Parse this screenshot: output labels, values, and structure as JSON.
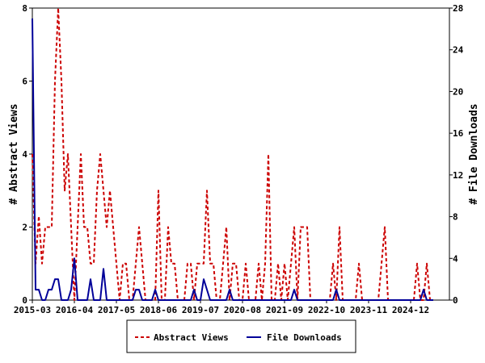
{
  "chart_data": {
    "type": "line",
    "title": "",
    "xlabel": "",
    "ylabel_left": "# Abstract Views",
    "ylabel_right": "# File Downloads",
    "x_range": [
      "2015-03",
      "2025-12"
    ],
    "x_ticks": [
      "2015-03",
      "2016-04",
      "2017-05",
      "2018-06",
      "2019-07",
      "2020-08",
      "2021-09",
      "2022-10",
      "2023-11",
      "2024-12"
    ],
    "y_left_range": [
      0,
      8
    ],
    "y_left_ticks": [
      "0",
      "2",
      "4",
      "6",
      "8"
    ],
    "y_right_range": [
      0,
      28
    ],
    "y_right_ticks": [
      "0",
      "4",
      "8",
      "12",
      "16",
      "20",
      "24",
      "28"
    ],
    "legend_position": "bottom",
    "series": [
      {
        "name": "Abstract Views",
        "axis": "left",
        "color": "#cc0000",
        "style": "dashed",
        "points": [
          [
            "2015-03",
            4
          ],
          [
            "2015-04",
            1
          ],
          [
            "2015-05",
            2.3
          ],
          [
            "2015-06",
            1
          ],
          [
            "2015-07",
            2
          ],
          [
            "2015-08",
            2
          ],
          [
            "2015-09",
            2
          ],
          [
            "2015-10",
            6
          ],
          [
            "2015-11",
            8
          ],
          [
            "2015-12",
            6
          ],
          [
            "2016-01",
            3
          ],
          [
            "2016-02",
            4
          ],
          [
            "2016-03",
            2
          ],
          [
            "2016-04",
            0
          ],
          [
            "2016-05",
            2
          ],
          [
            "2016-06",
            4
          ],
          [
            "2016-07",
            2
          ],
          [
            "2016-08",
            2
          ],
          [
            "2016-09",
            1
          ],
          [
            "2016-10",
            1
          ],
          [
            "2016-11",
            3
          ],
          [
            "2016-12",
            4
          ],
          [
            "2017-01",
            3
          ],
          [
            "2017-02",
            2
          ],
          [
            "2017-03",
            3
          ],
          [
            "2017-04",
            2
          ],
          [
            "2017-05",
            1
          ],
          [
            "2017-06",
            0
          ],
          [
            "2017-07",
            1
          ],
          [
            "2017-08",
            1
          ],
          [
            "2017-09",
            0
          ],
          [
            "2017-10",
            0
          ],
          [
            "2017-11",
            1
          ],
          [
            "2017-12",
            2
          ],
          [
            "2018-01",
            1
          ],
          [
            "2018-02",
            0
          ],
          [
            "2018-03",
            0
          ],
          [
            "2018-04",
            0
          ],
          [
            "2018-05",
            0
          ],
          [
            "2018-06",
            3
          ],
          [
            "2018-07",
            0
          ],
          [
            "2018-08",
            0
          ],
          [
            "2018-09",
            2
          ],
          [
            "2018-10",
            1
          ],
          [
            "2018-11",
            1
          ],
          [
            "2018-12",
            0
          ],
          [
            "2019-01",
            0
          ],
          [
            "2019-02",
            0
          ],
          [
            "2019-03",
            1
          ],
          [
            "2019-04",
            1
          ],
          [
            "2019-05",
            0
          ],
          [
            "2019-06",
            1
          ],
          [
            "2019-07",
            1
          ],
          [
            "2019-08",
            1
          ],
          [
            "2019-09",
            3
          ],
          [
            "2019-10",
            1
          ],
          [
            "2019-11",
            1
          ],
          [
            "2019-12",
            0
          ],
          [
            "2020-01",
            0
          ],
          [
            "2020-02",
            1
          ],
          [
            "2020-03",
            2
          ],
          [
            "2020-04",
            0
          ],
          [
            "2020-05",
            1
          ],
          [
            "2020-06",
            1
          ],
          [
            "2020-07",
            0
          ],
          [
            "2020-08",
            0
          ],
          [
            "2020-09",
            1
          ],
          [
            "2020-10",
            0
          ],
          [
            "2020-11",
            0
          ],
          [
            "2020-12",
            0
          ],
          [
            "2021-01",
            1
          ],
          [
            "2021-02",
            0
          ],
          [
            "2021-03",
            1
          ],
          [
            "2021-04",
            4
          ],
          [
            "2021-05",
            0
          ],
          [
            "2021-06",
            0
          ],
          [
            "2021-07",
            1
          ],
          [
            "2021-08",
            0
          ],
          [
            "2021-09",
            1
          ],
          [
            "2021-10",
            0
          ],
          [
            "2021-11",
            1
          ],
          [
            "2021-12",
            2
          ],
          [
            "2022-01",
            0
          ],
          [
            "2022-02",
            2
          ],
          [
            "2022-03",
            2
          ],
          [
            "2022-04",
            2
          ],
          [
            "2022-05",
            0
          ],
          [
            "2022-06",
            0
          ],
          [
            "2022-07",
            0
          ],
          [
            "2022-08",
            0
          ],
          [
            "2022-09",
            0
          ],
          [
            "2022-10",
            0
          ],
          [
            "2022-11",
            0
          ],
          [
            "2022-12",
            1
          ],
          [
            "2023-01",
            0
          ],
          [
            "2023-02",
            2
          ],
          [
            "2023-03",
            0
          ],
          [
            "2023-04",
            0
          ],
          [
            "2023-05",
            0
          ],
          [
            "2023-06",
            0
          ],
          [
            "2023-07",
            0
          ],
          [
            "2023-08",
            1
          ],
          [
            "2023-09",
            0
          ],
          [
            "2023-10",
            0
          ],
          [
            "2023-11",
            0
          ],
          [
            "2023-12",
            0
          ],
          [
            "2024-01",
            0
          ],
          [
            "2024-02",
            0
          ],
          [
            "2024-03",
            1
          ],
          [
            "2024-04",
            2
          ],
          [
            "2024-05",
            0
          ],
          [
            "2024-06",
            0
          ],
          [
            "2024-07",
            0
          ],
          [
            "2024-08",
            0
          ],
          [
            "2024-09",
            0
          ],
          [
            "2024-10",
            0
          ],
          [
            "2024-11",
            0
          ],
          [
            "2024-12",
            0
          ],
          [
            "2025-01",
            0
          ],
          [
            "2025-02",
            1
          ],
          [
            "2025-03",
            0
          ],
          [
            "2025-04",
            0
          ],
          [
            "2025-05",
            1
          ],
          [
            "2025-06",
            0
          ],
          [
            "2025-07",
            0
          ]
        ]
      },
      {
        "name": "File Downloads",
        "axis": "right",
        "color": "#000099",
        "style": "solid",
        "points": [
          [
            "2015-03",
            27
          ],
          [
            "2015-04",
            1
          ],
          [
            "2015-05",
            1
          ],
          [
            "2015-06",
            0
          ],
          [
            "2015-07",
            0
          ],
          [
            "2015-08",
            1
          ],
          [
            "2015-09",
            1
          ],
          [
            "2015-10",
            2
          ],
          [
            "2015-11",
            2
          ],
          [
            "2015-12",
            0
          ],
          [
            "2016-01",
            0
          ],
          [
            "2016-02",
            0
          ],
          [
            "2016-03",
            1
          ],
          [
            "2016-04",
            4
          ],
          [
            "2016-05",
            0
          ],
          [
            "2016-06",
            0
          ],
          [
            "2016-07",
            0
          ],
          [
            "2016-08",
            0
          ],
          [
            "2016-09",
            2
          ],
          [
            "2016-10",
            0
          ],
          [
            "2016-11",
            0
          ],
          [
            "2016-12",
            0
          ],
          [
            "2017-01",
            3
          ],
          [
            "2017-02",
            0
          ],
          [
            "2017-03",
            0
          ],
          [
            "2017-04",
            0
          ],
          [
            "2017-05",
            0
          ],
          [
            "2017-06",
            0
          ],
          [
            "2017-07",
            0
          ],
          [
            "2017-08",
            0
          ],
          [
            "2017-09",
            0
          ],
          [
            "2017-10",
            0
          ],
          [
            "2017-11",
            1
          ],
          [
            "2017-12",
            1
          ],
          [
            "2018-01",
            0
          ],
          [
            "2018-02",
            0
          ],
          [
            "2018-03",
            0
          ],
          [
            "2018-04",
            0
          ],
          [
            "2018-05",
            1
          ],
          [
            "2018-06",
            0
          ],
          [
            "2018-07",
            0
          ],
          [
            "2018-08",
            0
          ],
          [
            "2018-09",
            0
          ],
          [
            "2018-10",
            0
          ],
          [
            "2018-11",
            0
          ],
          [
            "2018-12",
            0
          ],
          [
            "2019-01",
            0
          ],
          [
            "2019-02",
            0
          ],
          [
            "2019-03",
            0
          ],
          [
            "2019-04",
            0
          ],
          [
            "2019-05",
            1
          ],
          [
            "2019-06",
            0
          ],
          [
            "2019-07",
            0
          ],
          [
            "2019-08",
            2
          ],
          [
            "2019-09",
            1
          ],
          [
            "2019-10",
            0
          ],
          [
            "2019-11",
            0
          ],
          [
            "2019-12",
            0
          ],
          [
            "2020-01",
            0
          ],
          [
            "2020-02",
            0
          ],
          [
            "2020-03",
            0
          ],
          [
            "2020-04",
            1
          ],
          [
            "2020-05",
            0
          ],
          [
            "2020-06",
            0
          ],
          [
            "2020-07",
            0
          ],
          [
            "2020-08",
            0
          ],
          [
            "2020-09",
            0
          ],
          [
            "2020-10",
            0
          ],
          [
            "2020-11",
            0
          ],
          [
            "2020-12",
            0
          ],
          [
            "2021-01",
            0
          ],
          [
            "2021-02",
            0
          ],
          [
            "2021-03",
            0
          ],
          [
            "2021-04",
            0
          ],
          [
            "2021-05",
            0
          ],
          [
            "2021-06",
            0
          ],
          [
            "2021-07",
            0
          ],
          [
            "2021-08",
            0
          ],
          [
            "2021-09",
            0
          ],
          [
            "2021-10",
            0
          ],
          [
            "2021-11",
            0
          ],
          [
            "2021-12",
            1
          ],
          [
            "2022-01",
            0
          ],
          [
            "2022-02",
            0
          ],
          [
            "2022-03",
            0
          ],
          [
            "2022-04",
            0
          ],
          [
            "2022-05",
            0
          ],
          [
            "2022-06",
            0
          ],
          [
            "2022-07",
            0
          ],
          [
            "2022-08",
            0
          ],
          [
            "2022-09",
            0
          ],
          [
            "2022-10",
            0
          ],
          [
            "2022-11",
            0
          ],
          [
            "2022-12",
            0
          ],
          [
            "2023-01",
            1
          ],
          [
            "2023-02",
            0
          ],
          [
            "2023-03",
            0
          ],
          [
            "2023-04",
            0
          ],
          [
            "2023-05",
            0
          ],
          [
            "2023-06",
            0
          ],
          [
            "2023-07",
            0
          ],
          [
            "2023-08",
            0
          ],
          [
            "2023-09",
            0
          ],
          [
            "2023-10",
            0
          ],
          [
            "2023-11",
            0
          ],
          [
            "2023-12",
            0
          ],
          [
            "2024-01",
            0
          ],
          [
            "2024-02",
            0
          ],
          [
            "2024-03",
            0
          ],
          [
            "2024-04",
            0
          ],
          [
            "2024-05",
            0
          ],
          [
            "2024-06",
            0
          ],
          [
            "2024-07",
            0
          ],
          [
            "2024-08",
            0
          ],
          [
            "2024-09",
            0
          ],
          [
            "2024-10",
            0
          ],
          [
            "2024-11",
            0
          ],
          [
            "2024-12",
            0
          ],
          [
            "2025-01",
            0
          ],
          [
            "2025-02",
            0
          ],
          [
            "2025-03",
            0
          ],
          [
            "2025-04",
            1
          ],
          [
            "2025-05",
            0
          ],
          [
            "2025-06",
            0
          ],
          [
            "2025-07",
            0
          ]
        ]
      }
    ]
  }
}
